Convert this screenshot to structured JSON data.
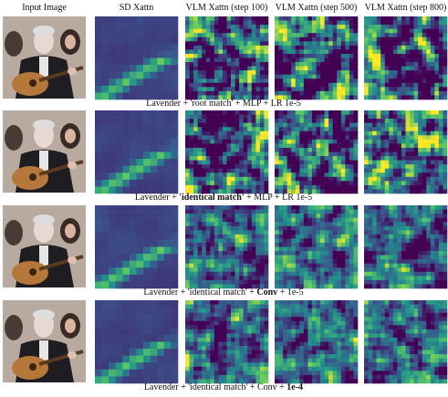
{
  "header": {
    "columns": [
      "Input Image",
      "SD Xattn",
      "VLM Xattn (step 100)",
      "VLM Xattn (step 500)",
      "VLM Xattn (step 800)"
    ]
  },
  "rows": [
    {
      "caption": [
        {
          "text": "Lavender + 'root match' + MLP + LR 1e-5",
          "bold": false
        }
      ]
    },
    {
      "caption": [
        {
          "text": "Lavender + ",
          "bold": false
        },
        {
          "text": "'identical match'",
          "bold": true
        },
        {
          "text": " + MLP + LR 1e-5",
          "bold": false
        }
      ]
    },
    {
      "caption": [
        {
          "text": "Lavender + 'identical match' + ",
          "bold": false
        },
        {
          "text": "Conv",
          "bold": true
        },
        {
          "text": " + 1e-5",
          "bold": false
        }
      ]
    },
    {
      "caption": [
        {
          "text": "Lavender + 'identical match' + Conv + ",
          "bold": false
        },
        {
          "text": "1e-4",
          "bold": true
        }
      ]
    }
  ]
}
